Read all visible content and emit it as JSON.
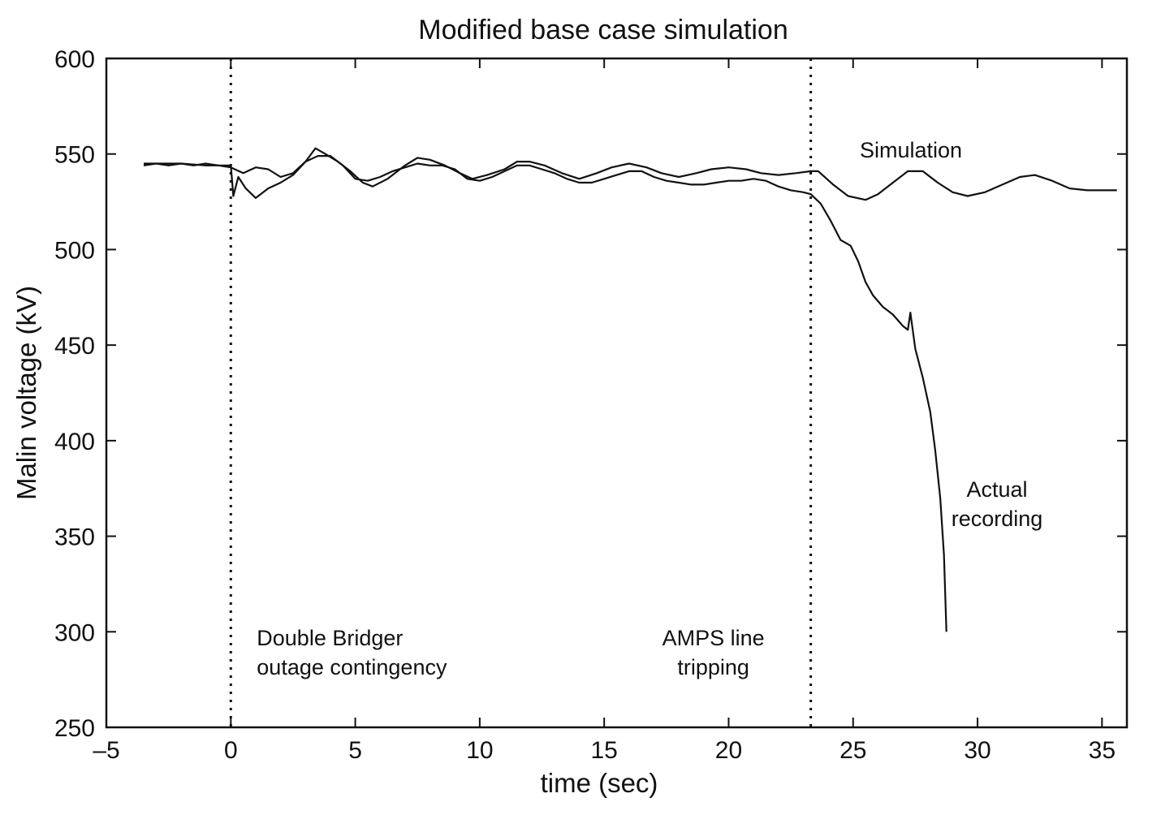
{
  "chart_data": {
    "type": "line",
    "title": "Modified base case simulation",
    "xlabel": "time (sec)",
    "ylabel": "Malin voltage (kV)",
    "xlim": [
      -5,
      36
    ],
    "ylim": [
      250,
      600
    ],
    "xticks": [
      -5,
      0,
      5,
      10,
      15,
      20,
      25,
      30,
      35
    ],
    "xtick_labels": [
      "–5",
      "0",
      "5",
      "10",
      "15",
      "20",
      "25",
      "30",
      "35"
    ],
    "yticks": [
      250,
      300,
      350,
      400,
      450,
      500,
      550,
      600
    ],
    "ytick_labels": [
      "250",
      "300",
      "350",
      "400",
      "450",
      "500",
      "550",
      "600"
    ],
    "grid": false,
    "event_lines": [
      {
        "x": 0,
        "label_lines": [
          "Double Bridger",
          "outage contingency"
        ]
      },
      {
        "x": 23.3,
        "label_lines": [
          "AMPS line",
          "tripping"
        ]
      }
    ],
    "series": [
      {
        "name": "Simulation",
        "label_lines": [
          "Simulation"
        ],
        "color": "#111111",
        "x": [
          -3.5,
          -3,
          -2,
          -1,
          -0.5,
          0,
          0.1,
          0.3,
          0.6,
          1,
          1.5,
          2,
          2.5,
          3,
          3.4,
          3.8,
          4.3,
          4.8,
          5.3,
          5.7,
          6.3,
          7,
          7.5,
          8,
          8.6,
          9.2,
          9.7,
          10.3,
          11,
          11.5,
          12,
          12.6,
          13.3,
          14,
          14.7,
          15.3,
          16,
          16.7,
          17.3,
          18,
          18.7,
          19.3,
          20,
          20.7,
          21.3,
          22,
          22.7,
          23.3,
          23.6,
          24.2,
          24.8,
          25.5,
          26,
          26.6,
          27.2,
          27.8,
          28.4,
          29,
          29.6,
          30.3,
          31,
          31.7,
          32.3,
          33,
          33.7,
          34.4,
          35,
          35.6
        ],
        "values": [
          544,
          545,
          545,
          544,
          544,
          544,
          528,
          538,
          532,
          527,
          532,
          535,
          539,
          546,
          553,
          550,
          546,
          541,
          535,
          533,
          537,
          544,
          548,
          547,
          544,
          540,
          537,
          539,
          542,
          546,
          546,
          544,
          540,
          537,
          540,
          543,
          545,
          543,
          540,
          538,
          540,
          542,
          543,
          542,
          540,
          539,
          540,
          541,
          541,
          534,
          528,
          526,
          529,
          535,
          541,
          541,
          535,
          530,
          528,
          530,
          534,
          538,
          539,
          536,
          532,
          531,
          531,
          531
        ]
      },
      {
        "name": "Actual recording",
        "label_lines": [
          "Actual",
          "recording"
        ],
        "color": "#111111",
        "x": [
          -3.5,
          -3,
          -2.5,
          -2,
          -1.5,
          -1,
          -0.5,
          0,
          0.5,
          1,
          1.5,
          2,
          2.5,
          3,
          3.5,
          4,
          4.5,
          5,
          5.5,
          6,
          6.5,
          7,
          7.5,
          8,
          8.5,
          9,
          9.5,
          10,
          10.5,
          11,
          11.5,
          12,
          12.5,
          13,
          13.5,
          14,
          14.5,
          15,
          15.5,
          16,
          16.5,
          17,
          17.5,
          18,
          18.5,
          19,
          19.5,
          20,
          20.5,
          21,
          21.5,
          22,
          22.5,
          23,
          23.3,
          23.7,
          24.1,
          24.5,
          24.9,
          25.2,
          25.5,
          25.8,
          26.2,
          26.6,
          27,
          27.2,
          27.3,
          27.5,
          27.8,
          28.1,
          28.3,
          28.5,
          28.65,
          28.75
        ],
        "values": [
          545,
          545,
          544,
          545,
          544,
          545,
          544,
          543,
          540,
          543,
          542,
          538,
          540,
          546,
          549,
          549,
          544,
          537,
          536,
          538,
          541,
          543,
          545,
          544,
          544,
          542,
          537,
          536,
          538,
          541,
          544,
          544,
          542,
          540,
          537,
          535,
          535,
          537,
          539,
          541,
          541,
          538,
          536,
          535,
          534,
          534,
          535,
          536,
          536,
          537,
          536,
          533,
          531,
          530,
          529,
          524,
          515,
          505,
          502,
          494,
          483,
          476,
          470,
          466,
          460,
          458,
          467,
          448,
          433,
          415,
          395,
          370,
          340,
          300
        ]
      }
    ]
  }
}
